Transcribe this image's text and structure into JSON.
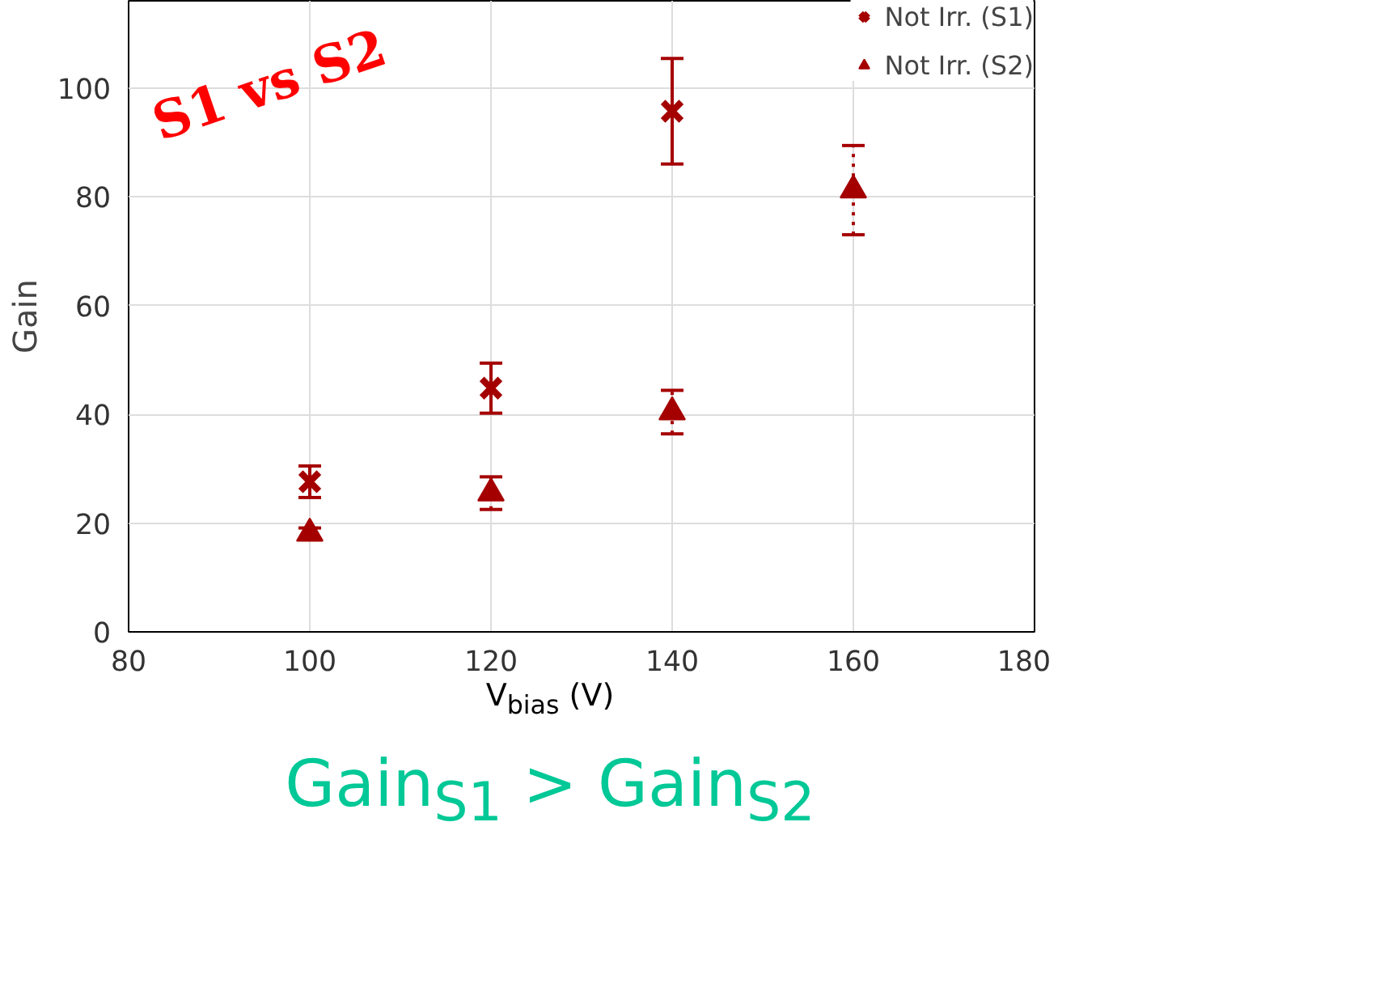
{
  "chart_data": {
    "type": "scatter",
    "xlabel": "V$_{bias}$ (V)",
    "ylabel": "Gain",
    "xlim": [
      80,
      180
    ],
    "xticks": [
      80,
      100,
      120,
      140,
      160,
      180
    ],
    "ylim": [
      0,
      116
    ],
    "yticks": [
      0,
      20,
      40,
      60,
      80,
      100
    ],
    "grid": true,
    "legend": "top right",
    "series": [
      {
        "name": "Not Irr. (S1)",
        "color": "#a50000",
        "marker": "cross",
        "x": [
          100,
          120,
          140
        ],
        "values": [
          27.6,
          44.8,
          95.7
        ],
        "errors": [
          2.9,
          4.6,
          9.7
        ]
      },
      {
        "name": "Not Irr. (S2)",
        "color": "#a50000",
        "marker": "triangle",
        "line_style": "dotted",
        "x": [
          100,
          120,
          140,
          160
        ],
        "values": [
          18.1,
          25.5,
          40.4,
          81.2
        ],
        "errors": [
          1,
          3,
          4,
          8.2
        ]
      }
    ],
    "annotations": [
      "S1 vs S2",
      "Gain$_{S1}$ > Gain$_{S2}$"
    ]
  }
}
